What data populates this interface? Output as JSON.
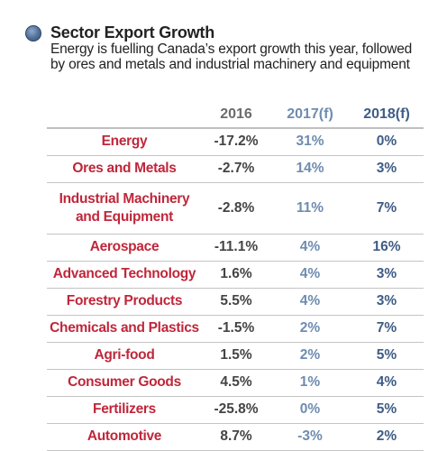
{
  "title": "Sector Export Growth",
  "subtitle": "Energy is fuelling Canada’s export growth this year, followed by ores and metals and industrial machinery and equipment",
  "colors": {
    "sector_label": "#c0263a",
    "col_2016": "#444444",
    "col_2017": "#6e8cb0",
    "col_2018": "#3f5c85"
  },
  "chart_data": {
    "type": "table",
    "title": "Sector Export Growth",
    "columns": [
      "2016",
      "2017(f)",
      "2018(f)"
    ],
    "rows": [
      {
        "sector": "Energy",
        "values": [
          "-17.2%",
          "31%",
          "0%"
        ]
      },
      {
        "sector": "Ores and Metals",
        "values": [
          "-2.7%",
          "14%",
          "3%"
        ]
      },
      {
        "sector": "Industrial Machinery and Equipment",
        "values": [
          "-2.8%",
          "11%",
          "7%"
        ]
      },
      {
        "sector": "Aerospace",
        "values": [
          "-11.1%",
          "4%",
          "16%"
        ]
      },
      {
        "sector": "Advanced Technology",
        "values": [
          "1.6%",
          "4%",
          "3%"
        ]
      },
      {
        "sector": "Forestry Products",
        "values": [
          "5.5%",
          "4%",
          "3%"
        ]
      },
      {
        "sector": "Chemicals and Plastics",
        "values": [
          "-1.5%",
          "2%",
          "7%"
        ]
      },
      {
        "sector": "Agri-food",
        "values": [
          "1.5%",
          "2%",
          "5%"
        ]
      },
      {
        "sector": "Consumer Goods",
        "values": [
          "4.5%",
          "1%",
          "4%"
        ]
      },
      {
        "sector": "Fertilizers",
        "values": [
          "-25.8%",
          "0%",
          "5%"
        ]
      },
      {
        "sector": "Automotive",
        "values": [
          "8.7%",
          "-3%",
          "2%"
        ]
      }
    ]
  }
}
